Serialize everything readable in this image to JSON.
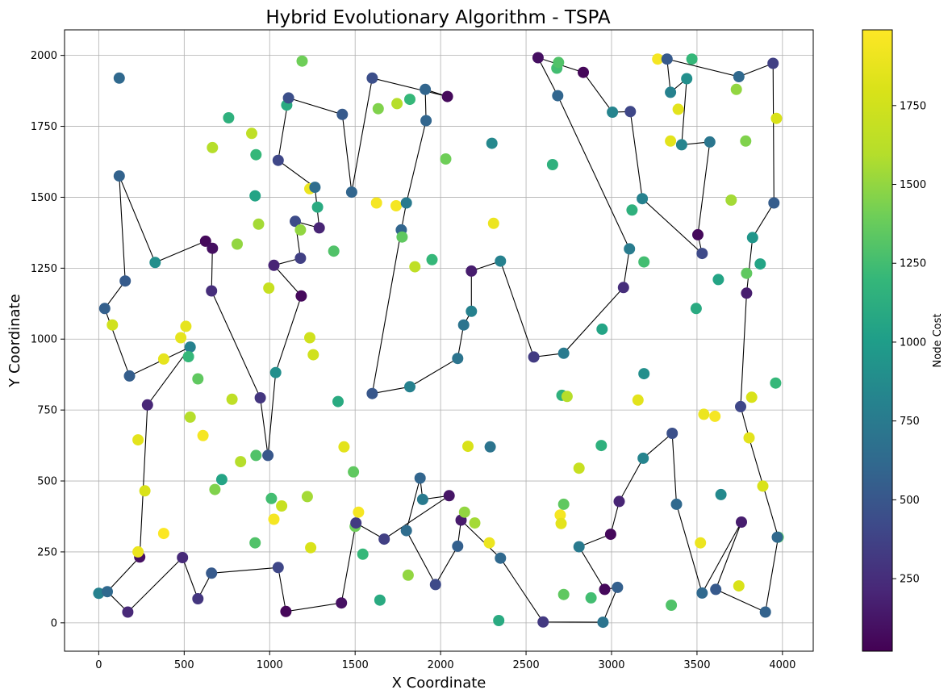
{
  "chart_data": {
    "type": "scatter",
    "title": "Hybrid Evolutionary Algorithm - TSPA",
    "xlabel": "X Coordinate",
    "ylabel": "Y Coordinate",
    "xlim": [
      -200,
      4180
    ],
    "ylim": [
      -100,
      2090
    ],
    "xticks": [
      0,
      500,
      1000,
      1500,
      2000,
      2500,
      3000,
      3500,
      4000
    ],
    "yticks": [
      0,
      250,
      500,
      750,
      1000,
      1250,
      1500,
      1750,
      2000
    ],
    "grid": true,
    "colormap": "viridis",
    "colorbar": {
      "label": "Node Cost",
      "min": 20,
      "max": 1990,
      "ticks": [
        250,
        500,
        750,
        1000,
        1250,
        1500,
        1750
      ]
    },
    "tour": [
      [
        1050,
        195
      ],
      [
        660,
        175
      ],
      [
        580,
        85
      ],
      [
        490,
        230
      ],
      [
        170,
        38
      ],
      [
        50,
        110
      ],
      [
        240,
        232
      ],
      [
        285,
        768
      ],
      [
        535,
        972
      ],
      [
        180,
        870
      ],
      [
        35,
        1108
      ],
      [
        155,
        1205
      ],
      [
        120,
        1575
      ],
      [
        330,
        1270
      ],
      [
        625,
        1345
      ],
      [
        665,
        1320
      ],
      [
        660,
        1170
      ],
      [
        945,
        793
      ],
      [
        990,
        590
      ],
      [
        1035,
        882
      ],
      [
        1185,
        1152
      ],
      [
        1025,
        1260
      ],
      [
        1180,
        1285
      ],
      [
        1150,
        1415
      ],
      [
        1290,
        1392
      ],
      [
        1265,
        1535
      ],
      [
        1050,
        1630
      ],
      [
        1110,
        1850
      ],
      [
        1425,
        1792
      ],
      [
        1480,
        1518
      ],
      [
        1600,
        1920
      ],
      [
        2040,
        1855
      ],
      [
        1910,
        1880
      ],
      [
        1915,
        1770
      ],
      [
        1800,
        1480
      ],
      [
        1770,
        1385
      ],
      [
        1600,
        808
      ],
      [
        1820,
        832
      ],
      [
        2100,
        932
      ],
      [
        2135,
        1050
      ],
      [
        2180,
        1098
      ],
      [
        2180,
        1240
      ],
      [
        2350,
        1275
      ],
      [
        2545,
        937
      ],
      [
        2720,
        950
      ],
      [
        3070,
        1182
      ],
      [
        3105,
        1318
      ],
      [
        2685,
        1858
      ],
      [
        2570,
        1992
      ],
      [
        2835,
        1940
      ],
      [
        3005,
        1800
      ],
      [
        3110,
        1802
      ],
      [
        3180,
        1495
      ],
      [
        3530,
        1302
      ],
      [
        3505,
        1368
      ],
      [
        3575,
        1695
      ],
      [
        3410,
        1685
      ],
      [
        3440,
        1918
      ],
      [
        3345,
        1870
      ],
      [
        3325,
        1987
      ],
      [
        3745,
        1925
      ],
      [
        3945,
        1972
      ],
      [
        3950,
        1480
      ],
      [
        3825,
        1358
      ],
      [
        3790,
        1162
      ],
      [
        3755,
        762
      ],
      [
        3805,
        652
      ],
      [
        3975,
        302
      ],
      [
        3900,
        38
      ],
      [
        3610,
        118
      ],
      [
        3760,
        355
      ],
      [
        3530,
        105
      ],
      [
        3380,
        418
      ],
      [
        3355,
        668
      ],
      [
        3185,
        580
      ],
      [
        3045,
        428
      ],
      [
        2995,
        312
      ],
      [
        2810,
        268
      ],
      [
        2960,
        118
      ],
      [
        3035,
        125
      ],
      [
        2950,
        2
      ],
      [
        2600,
        3
      ],
      [
        2350,
        228
      ],
      [
        2120,
        362
      ],
      [
        2100,
        270
      ],
      [
        1970,
        135
      ],
      [
        1800,
        325
      ],
      [
        1880,
        510
      ],
      [
        1895,
        435
      ],
      [
        2050,
        448
      ],
      [
        1670,
        295
      ],
      [
        1505,
        352
      ],
      [
        1420,
        70
      ],
      [
        1095,
        40
      ],
      [
        1050,
        195
      ]
    ],
    "points": [
      [
        0,
        104,
        800
      ],
      [
        50,
        110,
        620
      ],
      [
        120,
        1920,
        620
      ],
      [
        120,
        1575,
        580
      ],
      [
        155,
        1205,
        530
      ],
      [
        35,
        1108,
        560
      ],
      [
        80,
        1050,
        1750
      ],
      [
        180,
        870,
        550
      ],
      [
        240,
        232,
        100
      ],
      [
        170,
        38,
        220
      ],
      [
        230,
        645,
        1850
      ],
      [
        270,
        465,
        1800
      ],
      [
        230,
        250,
        1900
      ],
      [
        380,
        315,
        1980
      ],
      [
        380,
        930,
        1870
      ],
      [
        480,
        1005,
        1870
      ],
      [
        510,
        1045,
        1870
      ],
      [
        535,
        972,
        800
      ],
      [
        525,
        938,
        1200
      ],
      [
        580,
        860,
        1350
      ],
      [
        535,
        725,
        1600
      ],
      [
        610,
        660,
        1950
      ],
      [
        330,
        1270,
        900
      ],
      [
        285,
        768,
        210
      ],
      [
        490,
        230,
        230
      ],
      [
        580,
        85,
        300
      ],
      [
        660,
        175,
        520
      ],
      [
        625,
        1345,
        60
      ],
      [
        665,
        1320,
        90
      ],
      [
        660,
        1170,
        250
      ],
      [
        665,
        1675,
        1600
      ],
      [
        680,
        470,
        1450
      ],
      [
        720,
        505,
        1050
      ],
      [
        760,
        1780,
        1150
      ],
      [
        780,
        788,
        1650
      ],
      [
        810,
        1335,
        1500
      ],
      [
        830,
        568,
        1600
      ],
      [
        895,
        1725,
        1650
      ],
      [
        915,
        1505,
        1050
      ],
      [
        920,
        1650,
        1200
      ],
      [
        935,
        1405,
        1550
      ],
      [
        920,
        590,
        1300
      ],
      [
        915,
        282,
        1300
      ],
      [
        945,
        793,
        300
      ],
      [
        990,
        590,
        500
      ],
      [
        995,
        1180,
        1700
      ],
      [
        1010,
        438,
        1250
      ],
      [
        1025,
        365,
        1950
      ],
      [
        1035,
        882,
        900
      ],
      [
        1025,
        1260,
        200
      ],
      [
        1050,
        195,
        400
      ],
      [
        1050,
        1630,
        400
      ],
      [
        1070,
        412,
        1700
      ],
      [
        1095,
        40,
        50
      ],
      [
        1100,
        1825,
        1100
      ],
      [
        1110,
        1850,
        450
      ],
      [
        1150,
        1415,
        430
      ],
      [
        1180,
        1285,
        360
      ],
      [
        1185,
        1152,
        60
      ],
      [
        1180,
        1385,
        1500
      ],
      [
        1190,
        1980,
        1400
      ],
      [
        1220,
        445,
        1550
      ],
      [
        1235,
        1005,
        1750
      ],
      [
        1240,
        265,
        1800
      ],
      [
        1235,
        1530,
        1900
      ],
      [
        1255,
        945,
        1750
      ],
      [
        1265,
        1535,
        650
      ],
      [
        1280,
        1465,
        1100
      ],
      [
        1290,
        1392,
        200
      ],
      [
        1375,
        1310,
        1300
      ],
      [
        1400,
        780,
        1100
      ],
      [
        1420,
        70,
        100
      ],
      [
        1435,
        620,
        1850
      ],
      [
        1425,
        1792,
        520
      ],
      [
        1480,
        1518,
        600
      ],
      [
        1490,
        532,
        1350
      ],
      [
        1500,
        340,
        1400
      ],
      [
        1505,
        352,
        330
      ],
      [
        1520,
        390,
        1950
      ],
      [
        1545,
        242,
        1200
      ],
      [
        1600,
        808,
        500
      ],
      [
        1600,
        1920,
        450
      ],
      [
        1625,
        1480,
        1950
      ],
      [
        1635,
        1812,
        1450
      ],
      [
        1645,
        80,
        1100
      ],
      [
        1670,
        295,
        360
      ],
      [
        1740,
        1470,
        1950
      ],
      [
        1745,
        1830,
        1600
      ],
      [
        1770,
        1385,
        600
      ],
      [
        1775,
        1360,
        1350
      ],
      [
        1800,
        1480,
        750
      ],
      [
        1800,
        325,
        650
      ],
      [
        1810,
        168,
        1500
      ],
      [
        1820,
        1845,
        1200
      ],
      [
        1820,
        832,
        800
      ],
      [
        1850,
        1255,
        1650
      ],
      [
        1880,
        510,
        600
      ],
      [
        1895,
        435,
        750
      ],
      [
        1910,
        1880,
        600
      ],
      [
        1915,
        1770,
        600
      ],
      [
        1950,
        1280,
        1200
      ],
      [
        1970,
        135,
        420
      ],
      [
        2030,
        1635,
        1400
      ],
      [
        2040,
        1855,
        60
      ],
      [
        2050,
        448,
        120
      ],
      [
        2100,
        932,
        700
      ],
      [
        2100,
        270,
        560
      ],
      [
        2120,
        362,
        150
      ],
      [
        2135,
        1050,
        700
      ],
      [
        2140,
        390,
        1500
      ],
      [
        2160,
        622,
        1800
      ],
      [
        2180,
        1240,
        160
      ],
      [
        2180,
        1098,
        800
      ],
      [
        2200,
        352,
        1550
      ],
      [
        2290,
        620,
        700
      ],
      [
        2285,
        282,
        1900
      ],
      [
        2300,
        1690,
        850
      ],
      [
        2310,
        1408,
        1900
      ],
      [
        2340,
        8,
        1100
      ],
      [
        2350,
        1275,
        800
      ],
      [
        2350,
        228,
        620
      ],
      [
        2545,
        937,
        330
      ],
      [
        2570,
        1992,
        90
      ],
      [
        2600,
        3,
        320
      ],
      [
        2655,
        1615,
        1150
      ],
      [
        2680,
        1955,
        1250
      ],
      [
        2690,
        1975,
        1300
      ],
      [
        2685,
        1858,
        600
      ],
      [
        2700,
        380,
        1950
      ],
      [
        2705,
        350,
        1850
      ],
      [
        2710,
        802,
        1150
      ],
      [
        2720,
        418,
        1350
      ],
      [
        2720,
        950,
        750
      ],
      [
        2720,
        100,
        1350
      ],
      [
        2740,
        798,
        1600
      ],
      [
        2810,
        545,
        1700
      ],
      [
        2810,
        268,
        750
      ],
      [
        2835,
        1940,
        50
      ],
      [
        2880,
        88,
        1250
      ],
      [
        2940,
        625,
        1150
      ],
      [
        2945,
        1035,
        1050
      ],
      [
        2950,
        2,
        700
      ],
      [
        2960,
        118,
        60
      ],
      [
        2995,
        312,
        60
      ],
      [
        3005,
        1800,
        820
      ],
      [
        3035,
        125,
        560
      ],
      [
        3045,
        428,
        200
      ],
      [
        3070,
        1182,
        250
      ],
      [
        3105,
        1318,
        760
      ],
      [
        3110,
        1802,
        400
      ],
      [
        3120,
        1455,
        1150
      ],
      [
        3155,
        785,
        1850
      ],
      [
        3180,
        1495,
        800
      ],
      [
        3185,
        580,
        820
      ],
      [
        3190,
        878,
        900
      ],
      [
        3190,
        1272,
        1250
      ],
      [
        3270,
        1987,
        1950
      ],
      [
        3325,
        1987,
        520
      ],
      [
        3345,
        1870,
        800
      ],
      [
        3345,
        1698,
        1850
      ],
      [
        3350,
        62,
        1300
      ],
      [
        3355,
        668,
        460
      ],
      [
        3380,
        418,
        620
      ],
      [
        3390,
        1810,
        1850
      ],
      [
        3410,
        1685,
        820
      ],
      [
        3440,
        1918,
        900
      ],
      [
        3470,
        1987,
        1200
      ],
      [
        3495,
        1108,
        1100
      ],
      [
        3505,
        1368,
        60
      ],
      [
        3520,
        282,
        1900
      ],
      [
        3530,
        1302,
        420
      ],
      [
        3530,
        105,
        620
      ],
      [
        3540,
        735,
        1900
      ],
      [
        3575,
        1695,
        720
      ],
      [
        3605,
        728,
        1950
      ],
      [
        3610,
        118,
        520
      ],
      [
        3625,
        1210,
        1050
      ],
      [
        3640,
        452,
        860
      ],
      [
        3700,
        1490,
        1550
      ],
      [
        3730,
        1880,
        1500
      ],
      [
        3745,
        130,
        1800
      ],
      [
        3745,
        1925,
        620
      ],
      [
        3755,
        762,
        400
      ],
      [
        3760,
        355,
        160
      ],
      [
        3785,
        1698,
        1450
      ],
      [
        3790,
        1162,
        160
      ],
      [
        3790,
        1232,
        1350
      ],
      [
        3805,
        652,
        1850
      ],
      [
        3820,
        795,
        1800
      ],
      [
        3825,
        1358,
        950
      ],
      [
        3870,
        1265,
        1050
      ],
      [
        3885,
        482,
        1800
      ],
      [
        3900,
        38,
        580
      ],
      [
        3945,
        1972,
        360
      ],
      [
        3950,
        1480,
        540
      ],
      [
        3960,
        845,
        1200
      ],
      [
        3965,
        1778,
        1800
      ],
      [
        3975,
        302,
        1300
      ],
      [
        3970,
        302,
        620
      ]
    ]
  }
}
